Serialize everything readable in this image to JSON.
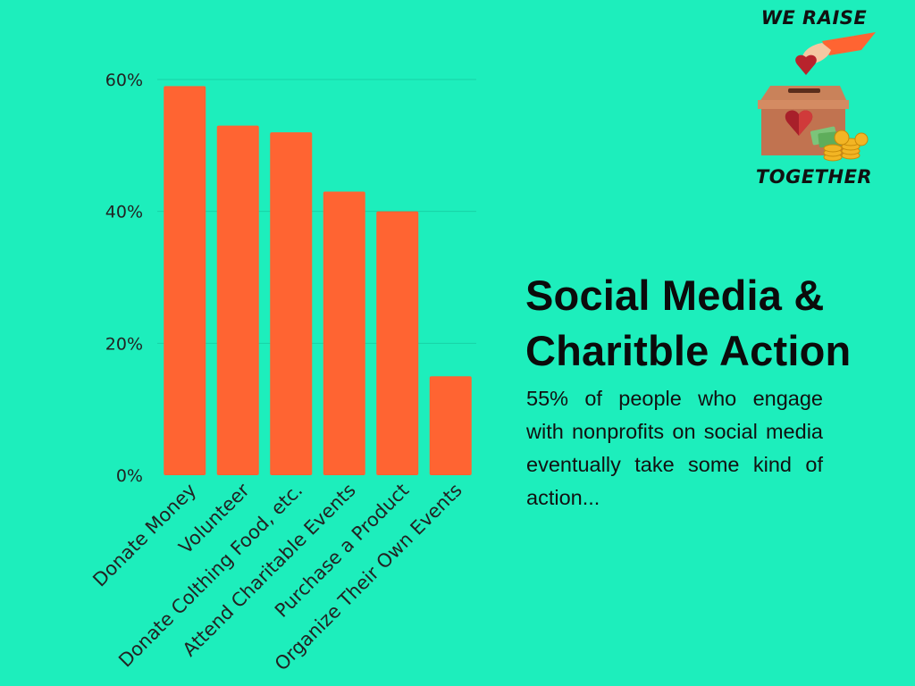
{
  "colors": {
    "background": "#1DEEBC",
    "bar": "#FF6432",
    "text": "#0b0b0b"
  },
  "logo": {
    "top_text": "WE RAISE",
    "bottom_text": "TOGETHER",
    "icon": "donation-box-icon"
  },
  "heading": {
    "line1": "Social Media &",
    "line2": "Charitble Action"
  },
  "body_text": "55% of people who engage with nonprofits on social media eventually take some kind of action...",
  "chart_data": {
    "type": "bar",
    "categories": [
      "Donate Money",
      "Volunteer",
      "Donate Colthing Food, etc.",
      "Attend Charitable Events",
      "Purchase a Product",
      "Organize Their Own Events"
    ],
    "values": [
      59,
      53,
      52,
      43,
      40,
      15
    ],
    "unit": "%",
    "title": "",
    "xlabel": "",
    "ylabel": "",
    "ylim": [
      0,
      60
    ],
    "yticks": [
      0,
      20,
      40,
      60
    ],
    "ytick_labels": [
      "0%",
      "20%",
      "40%",
      "60%"
    ],
    "grid": true,
    "legend": "none"
  }
}
